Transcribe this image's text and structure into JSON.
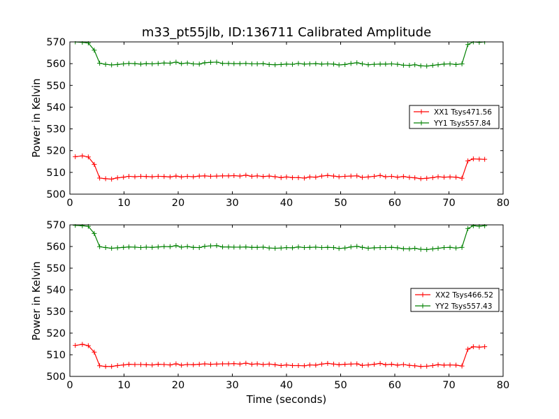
{
  "chart_data": [
    {
      "type": "line",
      "title": "m33_pt55jlb, ID:136711 Calibrated Amplitude",
      "xlabel": "",
      "ylabel": "Power in Kelvin",
      "xlim": [
        0,
        80
      ],
      "ylim": [
        500,
        570
      ],
      "xticks": [
        0,
        10,
        20,
        30,
        40,
        50,
        60,
        70,
        80
      ],
      "yticks": [
        500,
        510,
        520,
        530,
        540,
        550,
        560,
        570
      ],
      "x": [
        1.0,
        2.3,
        3.4,
        4.5,
        5.5,
        6.6,
        7.7,
        8.8,
        9.9,
        10.9,
        12.0,
        13.1,
        14.1,
        15.2,
        16.3,
        17.4,
        18.5,
        19.6,
        20.6,
        21.7,
        22.8,
        23.9,
        24.9,
        26.0,
        27.1,
        28.2,
        29.3,
        30.3,
        31.4,
        32.5,
        33.6,
        34.6,
        35.7,
        36.8,
        37.9,
        39.0,
        40.0,
        41.1,
        42.2,
        43.3,
        44.3,
        45.4,
        46.5,
        47.6,
        48.7,
        49.7,
        50.8,
        51.9,
        53.0,
        54.0,
        55.1,
        56.2,
        57.3,
        58.3,
        59.4,
        60.5,
        61.6,
        62.7,
        63.7,
        64.8,
        65.9,
        67.0,
        68.0,
        69.1,
        70.2,
        71.3,
        72.4,
        73.5,
        74.5,
        75.6,
        76.6
      ],
      "series": [
        {
          "name": "XX1 Tsys471.56",
          "color": "#ff0000",
          "values": [
            517.2,
            517.6,
            517.1,
            513.7,
            507.4,
            507.1,
            506.9,
            507.5,
            507.8,
            508.2,
            508.0,
            508.2,
            508.1,
            508.0,
            508.2,
            508.1,
            507.9,
            508.3,
            507.9,
            508.2,
            508.0,
            508.3,
            508.4,
            508.2,
            508.3,
            508.4,
            508.4,
            508.5,
            508.3,
            508.7,
            508.2,
            508.4,
            508.1,
            508.3,
            508.0,
            507.6,
            507.9,
            507.6,
            507.6,
            507.4,
            507.9,
            507.8,
            508.3,
            508.6,
            508.3,
            508.0,
            508.2,
            508.3,
            508.4,
            507.7,
            507.9,
            508.2,
            508.6,
            508.0,
            508.2,
            507.8,
            508.1,
            507.7,
            507.5,
            507.1,
            507.3,
            507.6,
            508.0,
            507.8,
            507.9,
            507.8,
            507.3,
            515.3,
            516.2,
            516.1,
            516.0
          ]
        },
        {
          "name": "YY1 Tsys557.84",
          "color": "#008000",
          "values": [
            570.0,
            569.8,
            569.5,
            566.2,
            560.2,
            559.7,
            559.4,
            559.6,
            559.9,
            560.1,
            560.0,
            559.8,
            560.0,
            559.9,
            560.1,
            560.3,
            560.2,
            560.7,
            560.0,
            560.3,
            559.9,
            559.8,
            560.4,
            560.6,
            560.7,
            560.1,
            560.1,
            560.0,
            560.0,
            560.1,
            559.9,
            559.9,
            560.0,
            559.6,
            559.5,
            559.6,
            559.8,
            559.7,
            560.1,
            559.8,
            559.9,
            560.0,
            559.8,
            559.9,
            559.8,
            559.4,
            559.6,
            560.1,
            560.4,
            559.9,
            559.5,
            559.7,
            559.8,
            559.8,
            559.9,
            559.7,
            559.3,
            559.2,
            559.5,
            559.0,
            558.9,
            559.2,
            559.5,
            559.8,
            559.9,
            559.6,
            559.9,
            568.8,
            570.0,
            569.8,
            570.0
          ]
        }
      ],
      "legend": "right, vertically centered"
    },
    {
      "type": "line",
      "title": "",
      "xlabel": "Time (seconds)",
      "ylabel": "Power in Kelvin",
      "xlim": [
        0,
        80
      ],
      "ylim": [
        500,
        570
      ],
      "xticks": [
        0,
        10,
        20,
        30,
        40,
        50,
        60,
        70,
        80
      ],
      "yticks": [
        500,
        510,
        520,
        530,
        540,
        550,
        560,
        570
      ],
      "x": [
        1.0,
        2.3,
        3.4,
        4.5,
        5.5,
        6.6,
        7.7,
        8.8,
        9.9,
        10.9,
        12.0,
        13.1,
        14.1,
        15.2,
        16.3,
        17.4,
        18.5,
        19.6,
        20.6,
        21.7,
        22.8,
        23.9,
        24.9,
        26.0,
        27.1,
        28.2,
        29.3,
        30.3,
        31.4,
        32.5,
        33.6,
        34.6,
        35.7,
        36.8,
        37.9,
        39.0,
        40.0,
        41.1,
        42.2,
        43.3,
        44.3,
        45.4,
        46.5,
        47.6,
        48.7,
        49.7,
        50.8,
        51.9,
        53.0,
        54.0,
        55.1,
        56.2,
        57.3,
        58.3,
        59.4,
        60.5,
        61.6,
        62.7,
        63.7,
        64.8,
        65.9,
        67.0,
        68.0,
        69.1,
        70.2,
        71.3,
        72.4,
        73.5,
        74.5,
        75.6,
        76.6
      ],
      "series": [
        {
          "name": "XX2 Tsys466.52",
          "color": "#ff0000",
          "values": [
            514.3,
            514.8,
            514.2,
            511.2,
            504.9,
            504.6,
            504.6,
            505.0,
            505.3,
            505.6,
            505.5,
            505.5,
            505.4,
            505.3,
            505.6,
            505.5,
            505.3,
            505.8,
            505.2,
            505.5,
            505.4,
            505.6,
            505.8,
            505.6,
            505.7,
            505.8,
            505.8,
            505.9,
            505.7,
            506.1,
            505.6,
            505.8,
            505.5,
            505.7,
            505.4,
            505.0,
            505.3,
            505.0,
            505.0,
            504.9,
            505.3,
            505.2,
            505.7,
            506.0,
            505.7,
            505.4,
            505.6,
            505.7,
            505.8,
            505.1,
            505.3,
            505.6,
            506.0,
            505.4,
            505.6,
            505.2,
            505.5,
            505.1,
            504.9,
            504.6,
            504.7,
            505.0,
            505.4,
            505.2,
            505.3,
            505.2,
            504.8,
            512.6,
            513.7,
            513.5,
            513.7
          ]
        },
        {
          "name": "YY2 Tsys557.43",
          "color": "#008000",
          "values": [
            569.8,
            569.6,
            569.3,
            566.0,
            559.9,
            559.5,
            559.2,
            559.4,
            559.6,
            559.8,
            559.7,
            559.5,
            559.7,
            559.6,
            559.8,
            560.0,
            559.9,
            560.4,
            559.7,
            560.0,
            559.6,
            559.5,
            560.1,
            560.3,
            560.4,
            559.8,
            559.8,
            559.7,
            559.7,
            559.8,
            559.6,
            559.6,
            559.7,
            559.3,
            559.2,
            559.3,
            559.5,
            559.4,
            559.8,
            559.5,
            559.6,
            559.7,
            559.5,
            559.6,
            559.5,
            559.1,
            559.3,
            559.8,
            560.1,
            559.6,
            559.2,
            559.4,
            559.5,
            559.5,
            559.6,
            559.4,
            559.0,
            558.9,
            559.2,
            558.7,
            558.6,
            558.9,
            559.2,
            559.5,
            559.6,
            559.3,
            559.6,
            568.3,
            569.6,
            569.4,
            569.6
          ]
        }
      ],
      "legend": "right, vertically centered"
    }
  ]
}
